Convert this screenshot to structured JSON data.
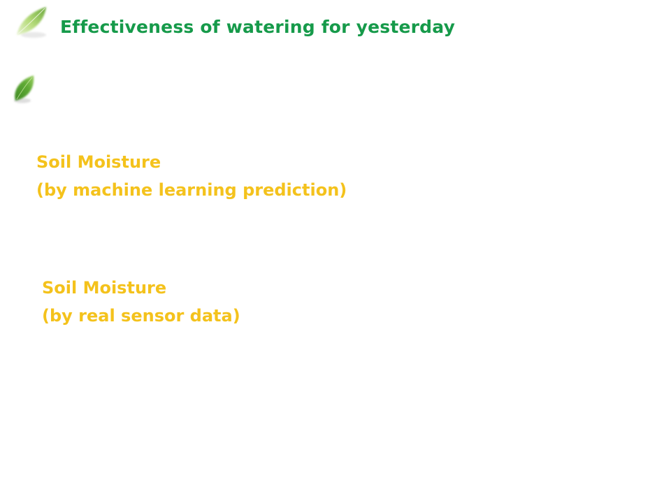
{
  "page": {
    "title": "Effectiveness of watering for yesterday"
  },
  "sections": [
    {
      "heading": "Soil Moisture",
      "subheading": "(by machine learning prediction)"
    },
    {
      "heading": "Soil Moisture",
      "subheading": "(by real sensor data)"
    }
  ],
  "colors": {
    "title": "#169a4a",
    "labels": "#f4c21c",
    "leaf_light": "#a9d36a",
    "leaf_dark": "#2f7d1c",
    "background": "#ffffff"
  },
  "icons": {
    "top_leaf": "leaf-icon",
    "mid_leaf": "leaf-icon"
  }
}
